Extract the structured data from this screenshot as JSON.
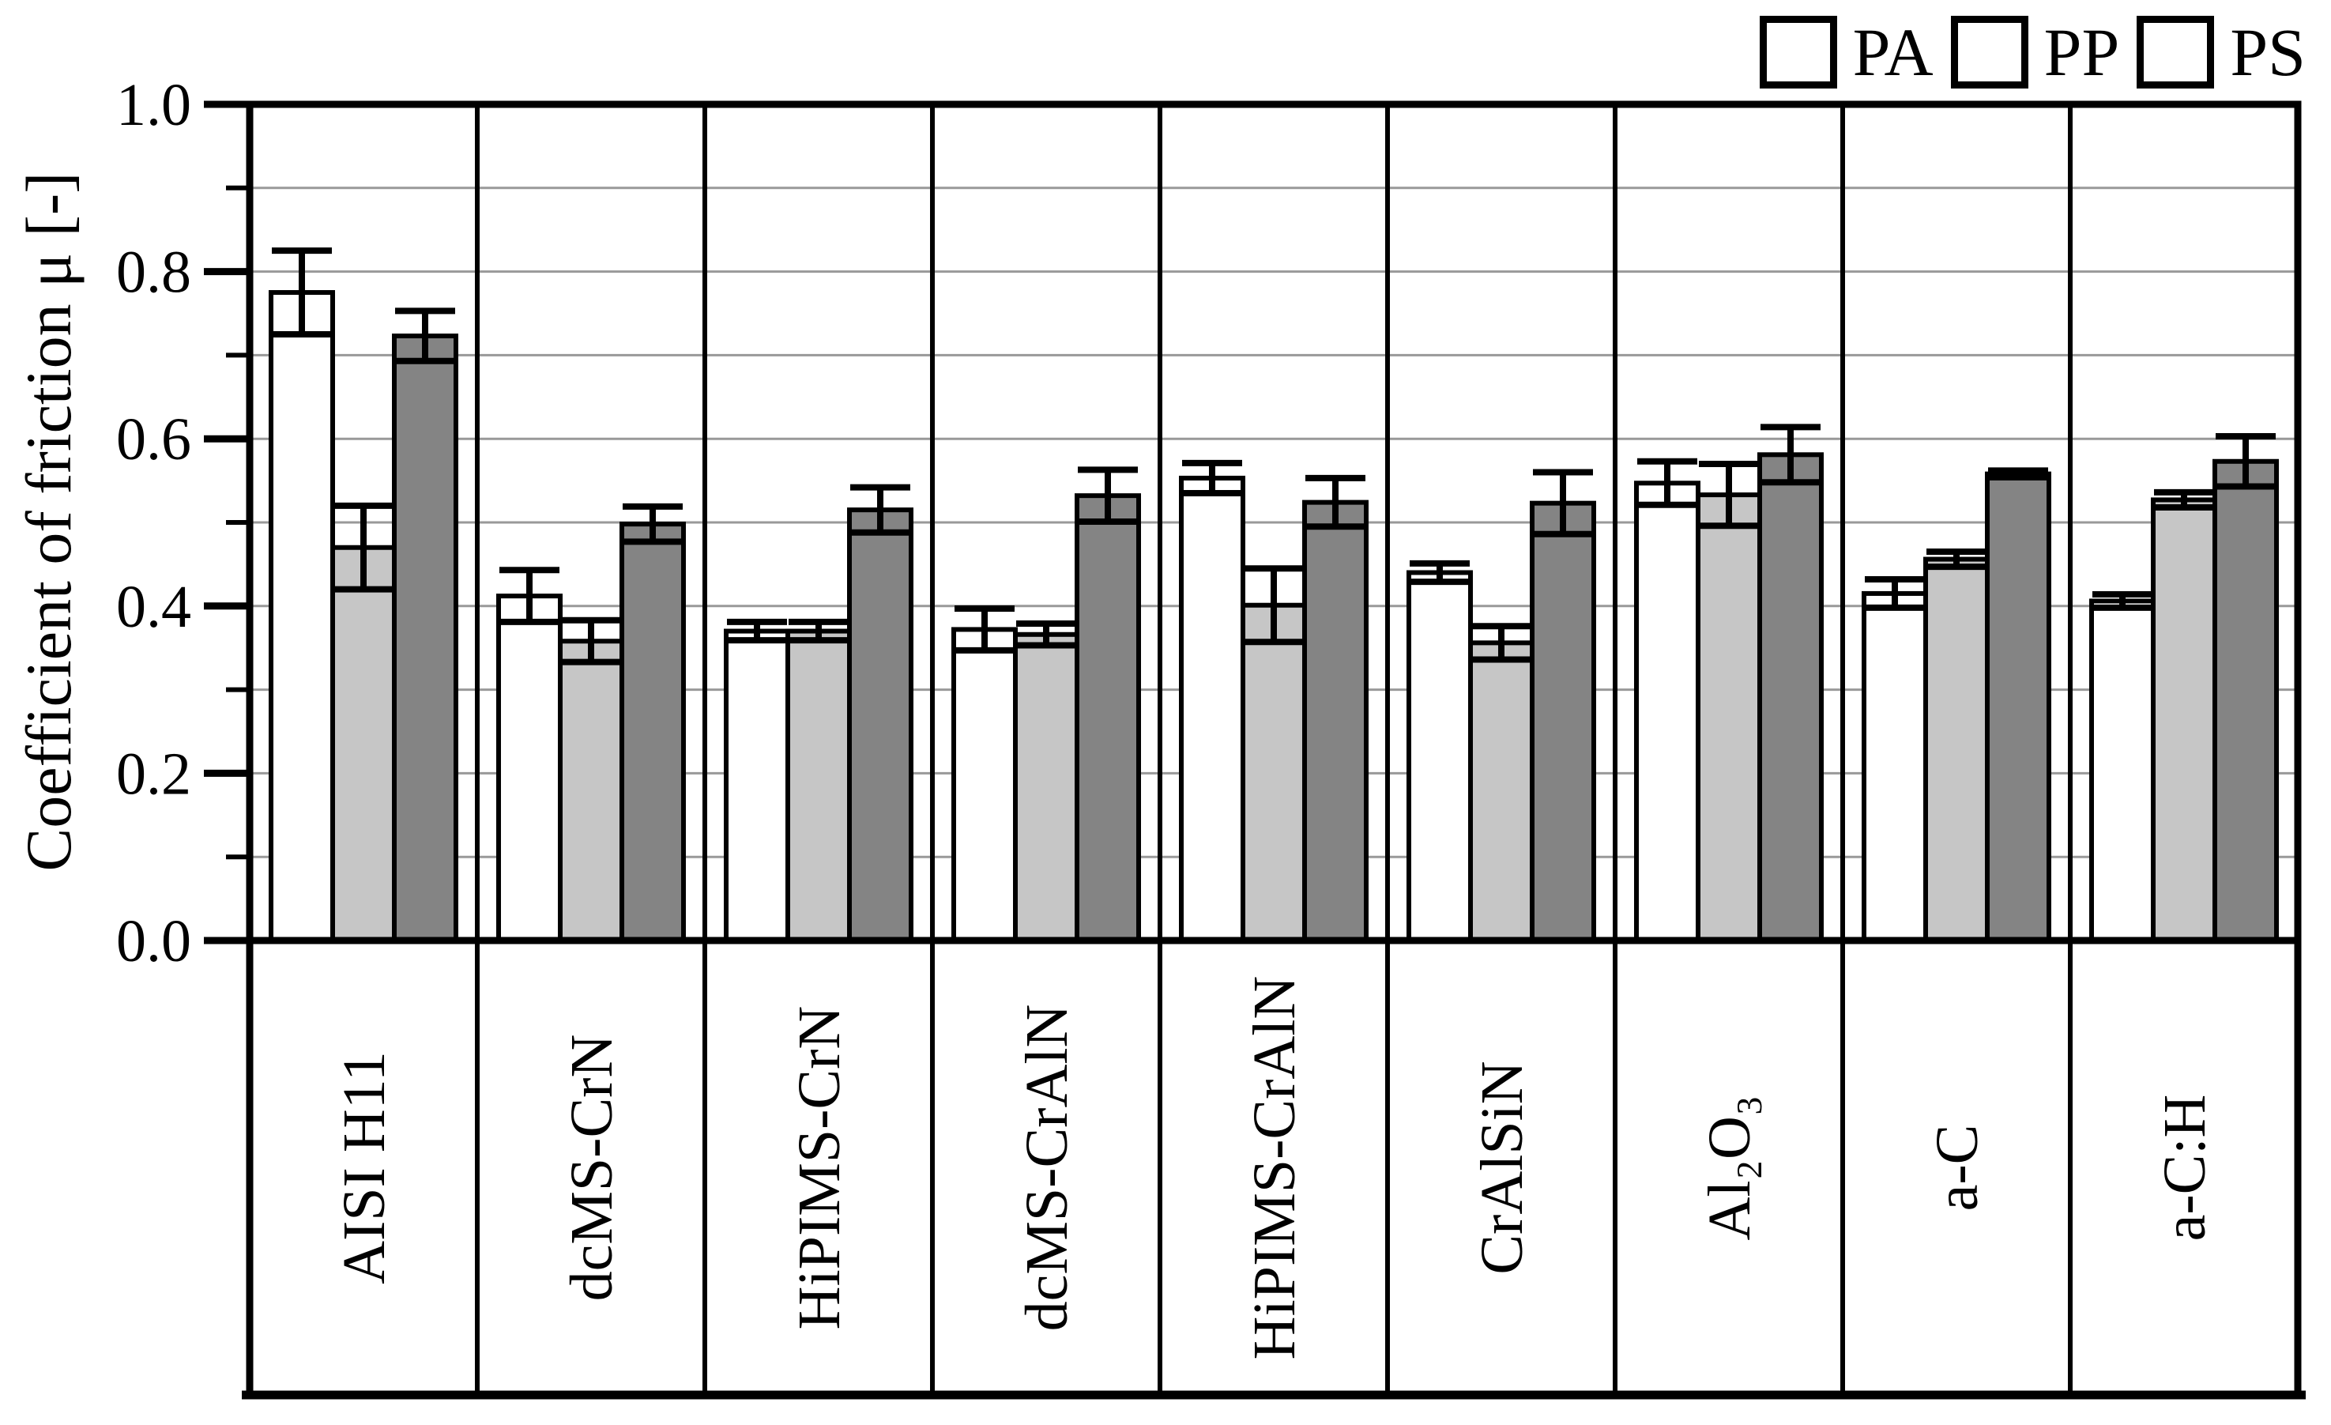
{
  "axis": {
    "y_title": "Coefficient of friction μ [-]"
  },
  "legend": {
    "position": "top-right",
    "items": [
      {
        "label": "PA",
        "color": "#ffffff"
      },
      {
        "label": "PP",
        "color": "#c6c6c6"
      },
      {
        "label": "PS",
        "color": "#848484"
      }
    ]
  },
  "chart_data": {
    "type": "bar",
    "title": "",
    "xlabel": "",
    "ylabel": "Coefficient of friction μ [-]",
    "ylim": [
      0.0,
      1.0
    ],
    "ytick_step": 0.2,
    "minor_grid_step": 0.1,
    "grid": "horizontal gray gridlines every 0.1, black group-divider verticals",
    "legend_position": "top-right",
    "bar_outline_color": "#000000",
    "gridline_color": "#999999",
    "yticks": [
      "0.0",
      "0.2",
      "0.4",
      "0.6",
      "0.8",
      "1.0"
    ],
    "categories": [
      "AISI H11",
      "dcMS-CrN",
      "HiPIMS-CrN",
      "dcMS-CrAlN",
      "HiPIMS-CrAlN",
      "CrAlSiN",
      "Al₂O₃",
      "a-C",
      "a-C:H"
    ],
    "series": [
      {
        "name": "PA",
        "fill": "#ffffff",
        "values": [
          0.775,
          0.412,
          0.37,
          0.372,
          0.553,
          0.44,
          0.547,
          0.415,
          0.406
        ],
        "errors": [
          0.05,
          0.031,
          0.011,
          0.025,
          0.018,
          0.011,
          0.026,
          0.017,
          0.008
        ]
      },
      {
        "name": "PP",
        "fill": "#c6c6c6",
        "values": [
          0.47,
          0.358,
          0.37,
          0.366,
          0.401,
          0.356,
          0.533,
          0.456,
          0.527
        ],
        "errors": [
          0.05,
          0.025,
          0.011,
          0.013,
          0.044,
          0.02,
          0.037,
          0.009,
          0.009
        ]
      },
      {
        "name": "PS",
        "fill": "#848484",
        "values": [
          0.723,
          0.498,
          0.515,
          0.532,
          0.524,
          0.523,
          0.581,
          0.558,
          0.573
        ],
        "errors": [
          0.03,
          0.021,
          0.027,
          0.031,
          0.029,
          0.037,
          0.033,
          0.004,
          0.03
        ]
      }
    ]
  }
}
